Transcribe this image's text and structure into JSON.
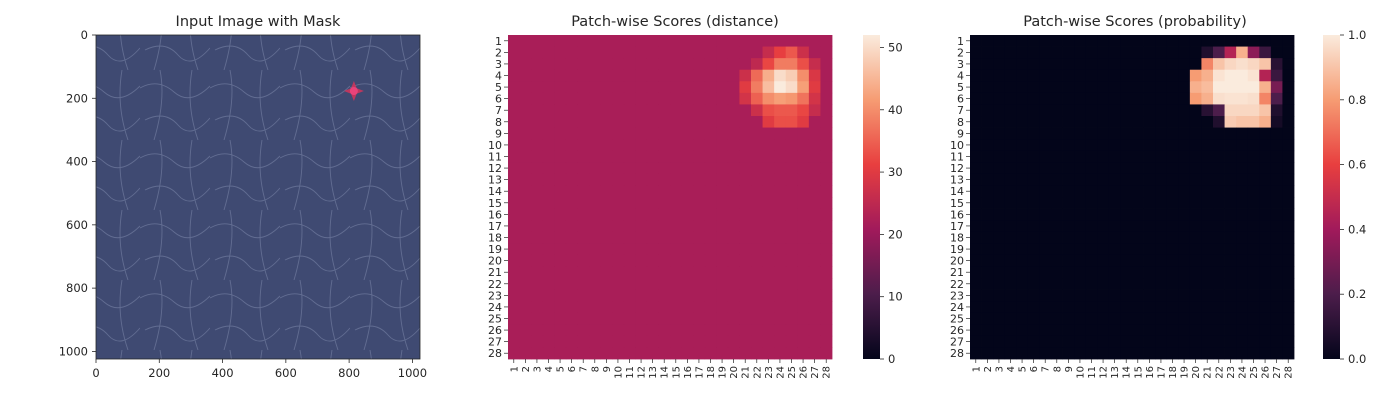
{
  "chart_data": [
    {
      "type": "image",
      "title": "Input Image with Mask",
      "xlim": [
        0,
        1024
      ],
      "ylim": [
        1024,
        0
      ],
      "xticks": [
        "0",
        "200",
        "400",
        "600",
        "800",
        "1000"
      ],
      "yticks": [
        "0",
        "200",
        "400",
        "600",
        "800",
        "1000"
      ],
      "texture_color": "#3f4a72",
      "mask_color": "#d2345a",
      "mask_center": [
        815,
        177
      ]
    },
    {
      "type": "heatmap",
      "title": "Patch-wise Scores (distance)",
      "rows": 28,
      "cols": 28,
      "row_labels": [
        "1",
        "2",
        "3",
        "4",
        "5",
        "6",
        "7",
        "8",
        "9",
        "10",
        "11",
        "12",
        "13",
        "14",
        "15",
        "16",
        "17",
        "18",
        "19",
        "20",
        "21",
        "22",
        "23",
        "24",
        "25",
        "26",
        "27",
        "28"
      ],
      "col_labels": [
        "1",
        "2",
        "3",
        "4",
        "5",
        "6",
        "7",
        "8",
        "9",
        "10",
        "11",
        "12",
        "13",
        "14",
        "15",
        "16",
        "17",
        "18",
        "19",
        "20",
        "21",
        "22",
        "23",
        "24",
        "25",
        "26",
        "27",
        "28"
      ],
      "colorbar": {
        "min": 0,
        "max": 52,
        "ticks": [
          "0",
          "10",
          "20",
          "30",
          "40",
          "50"
        ]
      },
      "base_value": 22,
      "hotspot": [
        {
          "row": 2,
          "cols": [
            23,
            24,
            25,
            26
          ],
          "values": [
            26,
            31,
            34,
            27
          ]
        },
        {
          "row": 3,
          "cols": [
            22,
            23,
            24,
            25,
            26,
            27
          ],
          "values": [
            25,
            32,
            38,
            38,
            33,
            26
          ]
        },
        {
          "row": 4,
          "cols": [
            21,
            22,
            23,
            24,
            25,
            26,
            27
          ],
          "values": [
            27,
            36,
            44,
            50,
            48,
            40,
            29
          ]
        },
        {
          "row": 5,
          "cols": [
            21,
            22,
            23,
            24,
            25,
            26,
            27
          ],
          "values": [
            30,
            38,
            46,
            52,
            50,
            42,
            30
          ]
        },
        {
          "row": 6,
          "cols": [
            21,
            22,
            23,
            24,
            25,
            26,
            27
          ],
          "values": [
            28,
            35,
            40,
            42,
            41,
            37,
            28
          ]
        },
        {
          "row": 7,
          "cols": [
            22,
            23,
            24,
            25,
            26,
            27
          ],
          "values": [
            27,
            33,
            34,
            34,
            32,
            26
          ]
        },
        {
          "row": 8,
          "cols": [
            23,
            24,
            25,
            26
          ],
          "values": [
            30,
            33,
            33,
            30
          ]
        }
      ]
    },
    {
      "type": "heatmap",
      "title": "Patch-wise Scores (probability)",
      "rows": 28,
      "cols": 28,
      "row_labels": [
        "1",
        "2",
        "3",
        "4",
        "5",
        "6",
        "7",
        "8",
        "9",
        "10",
        "11",
        "12",
        "13",
        "14",
        "15",
        "16",
        "17",
        "18",
        "19",
        "20",
        "21",
        "22",
        "23",
        "24",
        "25",
        "26",
        "27",
        "28"
      ],
      "col_labels": [
        "1",
        "2",
        "3",
        "4",
        "5",
        "6",
        "7",
        "8",
        "9",
        "10",
        "11",
        "12",
        "13",
        "14",
        "15",
        "16",
        "17",
        "18",
        "19",
        "20",
        "21",
        "22",
        "23",
        "24",
        "25",
        "26",
        "27",
        "28"
      ],
      "colorbar": {
        "min": 0,
        "max": 1,
        "ticks": [
          "0.0",
          "0.2",
          "0.4",
          "0.6",
          "0.8",
          "1.0"
        ]
      },
      "base_value": 0.0,
      "hotspot": [
        {
          "row": 2,
          "cols": [
            21,
            22,
            23,
            24,
            25,
            26
          ],
          "values": [
            0.08,
            0.2,
            0.45,
            0.85,
            0.35,
            0.15
          ]
        },
        {
          "row": 3,
          "cols": [
            21,
            22,
            23,
            24,
            25,
            26,
            27
          ],
          "values": [
            0.75,
            0.9,
            0.95,
            0.97,
            0.95,
            0.9,
            0.1
          ]
        },
        {
          "row": 4,
          "cols": [
            20,
            21,
            22,
            23,
            24,
            25,
            26,
            27
          ],
          "values": [
            0.8,
            0.85,
            0.98,
            1.0,
            1.0,
            0.98,
            0.45,
            0.15
          ]
        },
        {
          "row": 5,
          "cols": [
            20,
            21,
            22,
            23,
            24,
            25,
            26,
            27
          ],
          "values": [
            0.85,
            0.88,
            1.0,
            1.0,
            1.0,
            1.0,
            0.85,
            0.3
          ]
        },
        {
          "row": 6,
          "cols": [
            20,
            21,
            22,
            23,
            24,
            25,
            26,
            27
          ],
          "values": [
            0.8,
            0.85,
            0.97,
            0.98,
            0.98,
            0.97,
            0.75,
            0.2
          ]
        },
        {
          "row": 7,
          "cols": [
            21,
            22,
            23,
            24,
            25,
            26,
            27
          ],
          "values": [
            0.1,
            0.2,
            0.95,
            0.95,
            0.95,
            0.9,
            0.08
          ]
        },
        {
          "row": 8,
          "cols": [
            22,
            23,
            24,
            25,
            26,
            27
          ],
          "values": [
            0.08,
            0.92,
            0.9,
            0.9,
            0.85,
            0.05
          ]
        }
      ]
    }
  ]
}
